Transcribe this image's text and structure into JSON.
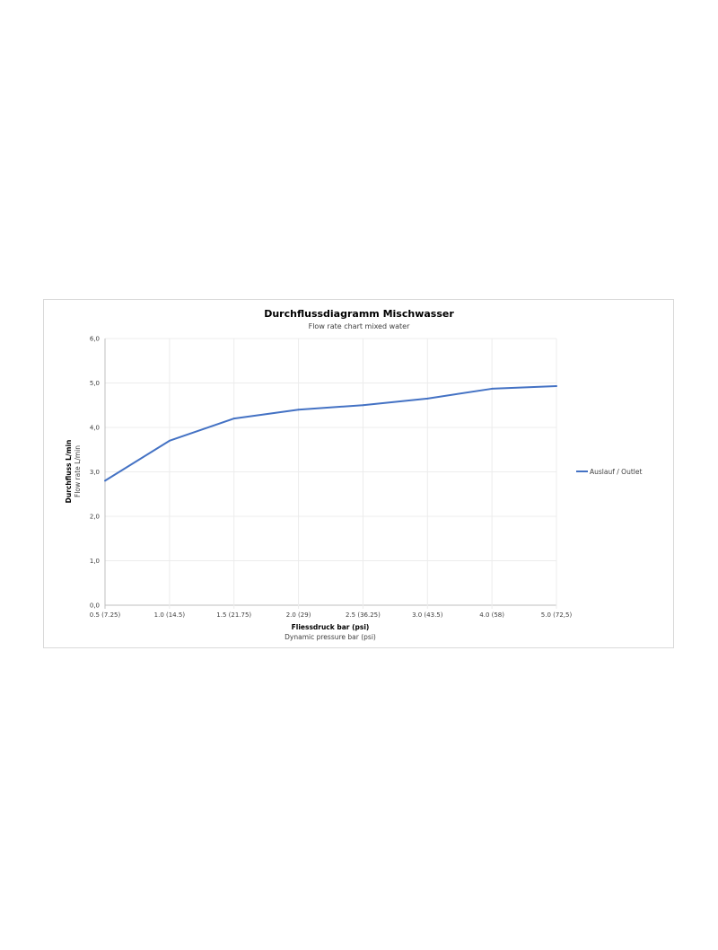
{
  "chart_data": {
    "type": "line",
    "title": "Durchflussdiagramm Mischwasser",
    "subtitle": "Flow rate chart mixed water",
    "xlabel": "Fliessdruck bar (psi)",
    "xlabel2": "Dynamic pressure bar (psi)",
    "ylabel": "Durchfluss L/min",
    "ylabel2": "Flow rate L/min",
    "categories": [
      "0.5 (7.25)",
      "1.0 (14.5)",
      "1.5 (21.75)",
      "2.0 (29)",
      "2.5 (36.25)",
      "3.0 (43.5)",
      "4.0 (58)",
      "5.0 (72,5)"
    ],
    "yticks": [
      "0,0",
      "1,0",
      "2,0",
      "3,0",
      "4,0",
      "5,0",
      "6,0"
    ],
    "ylim": [
      0,
      6
    ],
    "grid": true,
    "legend_position": "right",
    "series": [
      {
        "name": "Auslauf / Outlet",
        "color": "#4472c4",
        "values": [
          2.8,
          3.7,
          4.2,
          4.4,
          4.5,
          4.65,
          4.87,
          4.93
        ]
      }
    ]
  }
}
